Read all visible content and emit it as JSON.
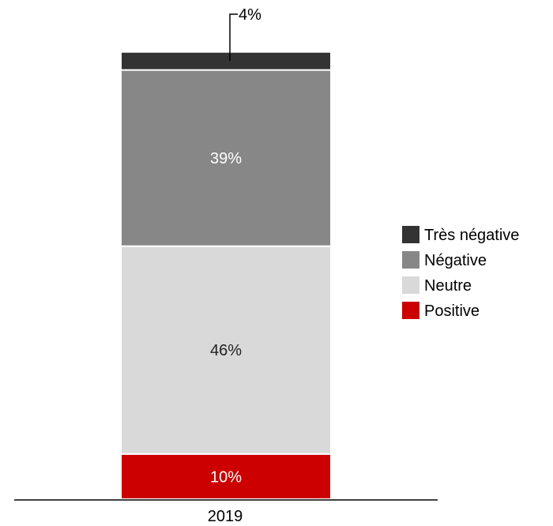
{
  "chart_data": {
    "type": "bar",
    "stacked": true,
    "categories": [
      "2019"
    ],
    "series": [
      {
        "name": "Positive",
        "values": [
          10
        ],
        "label": "10%",
        "color": "#cc0000",
        "label_color": "#ffffff"
      },
      {
        "name": "Neutre",
        "values": [
          46
        ],
        "label": "46%",
        "color": "#d9d9d9",
        "label_color": "#222222"
      },
      {
        "name": "Négative",
        "values": [
          39
        ],
        "label": "39%",
        "color": "#878787",
        "label_color": "#ffffff"
      },
      {
        "name": "Très négative",
        "values": [
          4
        ],
        "label": "4%",
        "color": "#333333",
        "label_color": "#000000"
      }
    ],
    "legend": {
      "position": "right",
      "order": [
        "Très négative",
        "Négative",
        "Neutre",
        "Positive"
      ]
    },
    "ylim": [
      0,
      100
    ],
    "grid": false
  }
}
